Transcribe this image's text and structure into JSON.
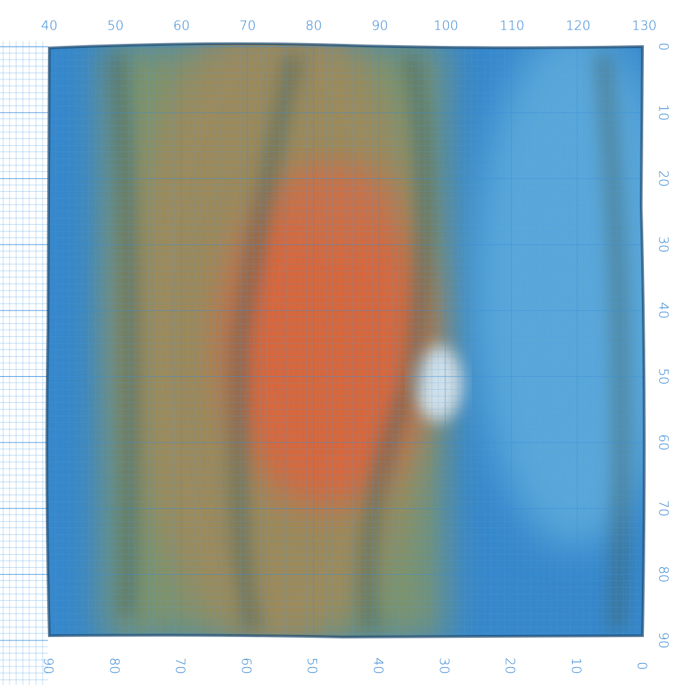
{
  "top_scale": {
    "labels": [
      40,
      50,
      60,
      70,
      80,
      90,
      100,
      110,
      120,
      130
    ]
  },
  "right_scale": {
    "labels": [
      0,
      10,
      20,
      30,
      40,
      50,
      60,
      70,
      80,
      90
    ]
  },
  "bottom_scale": {
    "labels": [
      90,
      80,
      70,
      60,
      50,
      40,
      30,
      20,
      10,
      0
    ]
  }
}
